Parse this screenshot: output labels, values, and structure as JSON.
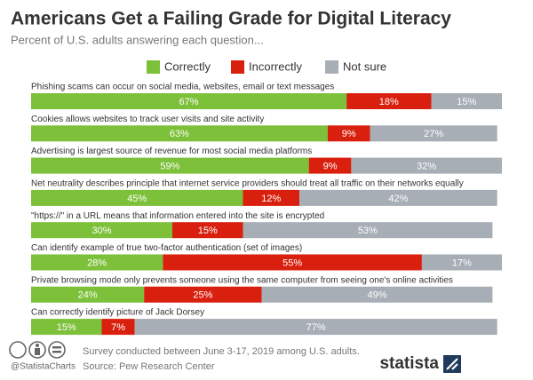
{
  "chart_data": {
    "type": "stacked-bar-horizontal",
    "title": "Americans Get a Failing Grade for Digital Literacy",
    "subtitle": "Percent of U.S. adults answering each question...",
    "categories": [
      "Phishing scams can occur on social media, websites, email or text messages",
      "Cookies allows websites to track user visits and site activity",
      "Advertising is largest source of revenue for most social media platforms",
      "Net neutrality describes principle that internet service providers should treat all traffic on their networks equally",
      "\"https://\" in a URL means that information entered into the site is encrypted",
      "Can identify example of true two-factor authentication (set of images)",
      "Private browsing mode only prevents someone using the same computer from seeing one's online activities",
      "Can correctly identify picture of Jack Dorsey"
    ],
    "series": [
      {
        "name": "Correctly",
        "color": "#7dc03a",
        "values": [
          67,
          63,
          59,
          45,
          30,
          28,
          24,
          15
        ],
        "value_labels": [
          "67%",
          "63%",
          "59%",
          "45%",
          "30%",
          "28%",
          "24%",
          "15%"
        ]
      },
      {
        "name": "Incorrectly",
        "color": "#d9200f",
        "values": [
          18,
          9,
          9,
          12,
          15,
          55,
          25,
          7
        ],
        "value_labels": [
          "18%",
          "9%",
          "9%",
          "12%",
          "15%",
          "55%",
          "25%",
          "7%"
        ]
      },
      {
        "name": "Not sure",
        "color": "#a7aeb5",
        "values": [
          15,
          27,
          32,
          42,
          53,
          17,
          49,
          77
        ],
        "value_labels": [
          "15%",
          "27%",
          "32%",
          "42%",
          "53%",
          "17%",
          "49%",
          "77%"
        ]
      }
    ],
    "xlim": [
      0,
      100
    ],
    "note": "Survey conducted between June 3-17, 2019 among U.S. adults.",
    "source": "Source: Pew Research Center",
    "credit": "@StatistaCharts",
    "brand": "statista"
  }
}
